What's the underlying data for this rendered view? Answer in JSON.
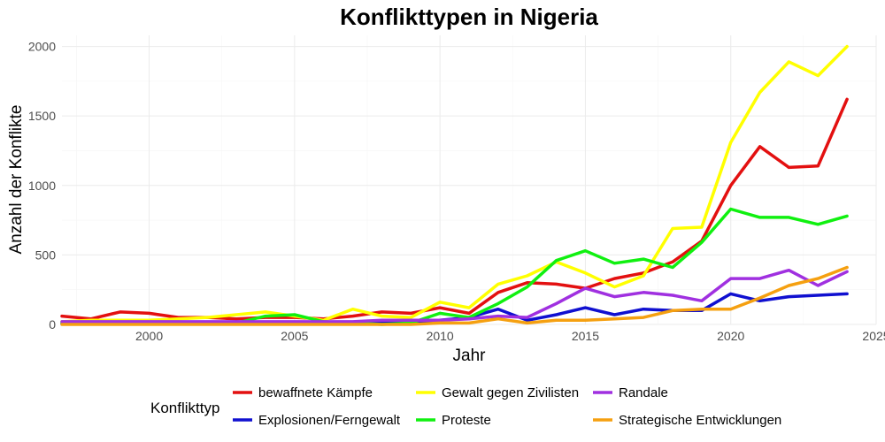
{
  "chart_data": {
    "type": "line",
    "title": "Konflikttypen in Nigeria",
    "xlabel": "Jahr",
    "ylabel": "Anzahl der Konflikte",
    "xlim": [
      1997,
      2025
    ],
    "ylim": [
      0,
      2080
    ],
    "x_ticks": [
      2000,
      2005,
      2010,
      2015,
      2020,
      2025
    ],
    "y_ticks": [
      0,
      500,
      1000,
      1500,
      2000
    ],
    "grid": true,
    "legend": {
      "title": "Konflikttyp",
      "position": "bottom"
    },
    "x": [
      1997,
      1998,
      1999,
      2000,
      2001,
      2002,
      2003,
      2004,
      2005,
      2006,
      2007,
      2008,
      2009,
      2010,
      2011,
      2012,
      2013,
      2014,
      2015,
      2016,
      2017,
      2018,
      2019,
      2020,
      2021,
      2022,
      2023,
      2024
    ],
    "series": [
      {
        "name": "bewaffnete Kämpfe",
        "color": "#e31010",
        "values": [
          60,
          40,
          90,
          80,
          50,
          50,
          40,
          50,
          50,
          40,
          60,
          90,
          80,
          120,
          80,
          230,
          300,
          290,
          260,
          330,
          370,
          450,
          600,
          1000,
          1280,
          1130,
          1140,
          1620
        ]
      },
      {
        "name": "Explosionen/Ferngewalt",
        "color": "#1010d0",
        "values": [
          5,
          5,
          5,
          5,
          5,
          5,
          5,
          5,
          5,
          5,
          10,
          10,
          20,
          30,
          50,
          110,
          30,
          70,
          120,
          70,
          110,
          100,
          100,
          220,
          170,
          200,
          210,
          220
        ]
      },
      {
        "name": "Gewalt gegen Zivilisten",
        "color": "#ffff00",
        "values": [
          20,
          30,
          30,
          30,
          40,
          50,
          70,
          90,
          60,
          30,
          110,
          60,
          50,
          160,
          120,
          290,
          350,
          450,
          370,
          270,
          350,
          690,
          700,
          1310,
          1670,
          1890,
          1790,
          2000
        ]
      },
      {
        "name": "Proteste",
        "color": "#10f010",
        "values": [
          10,
          10,
          10,
          10,
          10,
          10,
          10,
          60,
          70,
          20,
          10,
          0,
          10,
          80,
          50,
          150,
          270,
          460,
          530,
          440,
          470,
          410,
          590,
          830,
          770,
          770,
          720,
          780
        ]
      },
      {
        "name": "Randale",
        "color": "#a030e0",
        "values": [
          20,
          20,
          20,
          20,
          20,
          20,
          20,
          20,
          20,
          20,
          20,
          30,
          30,
          30,
          40,
          60,
          50,
          150,
          260,
          200,
          230,
          210,
          170,
          330,
          330,
          390,
          280,
          380
        ]
      },
      {
        "name": "Strategische Entwicklungen",
        "color": "#f5a010",
        "values": [
          0,
          0,
          0,
          0,
          0,
          0,
          0,
          0,
          0,
          0,
          0,
          0,
          0,
          10,
          10,
          40,
          10,
          30,
          30,
          40,
          50,
          100,
          110,
          110,
          190,
          280,
          330,
          410
        ]
      }
    ]
  }
}
